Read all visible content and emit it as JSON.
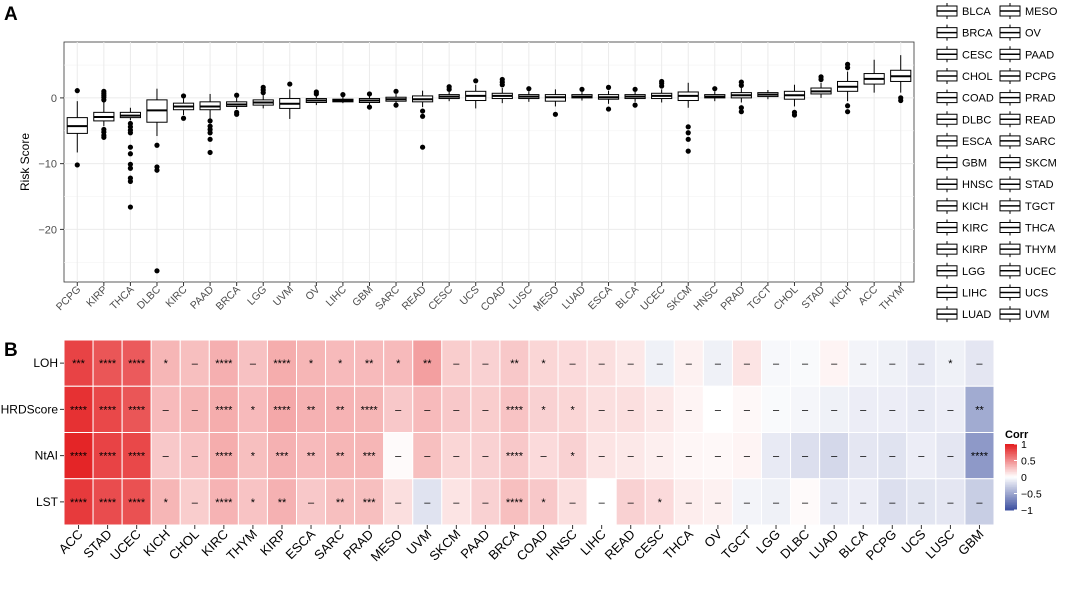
{
  "panel_a": {
    "label": "A"
  },
  "panel_b": {
    "label": "B"
  },
  "colors": {
    "box_fill": "#ffffff",
    "box_stroke": "#000000",
    "grid_major": "#ebebeb",
    "panel_bg": "#ffffff",
    "heat_high": "#e31a1c",
    "heat_mid": "#ffffff",
    "heat_low": "#3c4fa0"
  },
  "chart_data": [
    {
      "type": "boxplot",
      "title": "",
      "xlabel": "",
      "ylabel": "Risk Score",
      "ylim": [
        -28,
        8.5
      ],
      "yticks": [
        0,
        -10,
        -20
      ],
      "ytick_labels": [
        "0",
        "−10",
        "−20"
      ],
      "categories": [
        "PCPG",
        "KIRP",
        "THCA",
        "DLBC",
        "KIRC",
        "PAAD",
        "BRCA",
        "LGG",
        "UVM",
        "OV",
        "LIHC",
        "GBM",
        "SARC",
        "READ",
        "CESC",
        "UCS",
        "COAD",
        "LUSC",
        "MESO",
        "LUAD",
        "ESCA",
        "BLCA",
        "UCEC",
        "SKCM",
        "HNSC",
        "PRAD",
        "TGCT",
        "CHOL",
        "STAD",
        "KICH",
        "ACC",
        "THYM"
      ],
      "boxes": [
        {
          "q1": -5.4,
          "median": -4.3,
          "q3": -3.0,
          "wlo": -8.3,
          "whi": -0.5,
          "out": [
            -10.2,
            1.1
          ]
        },
        {
          "q1": -3.5,
          "median": -2.9,
          "q3": -2.2,
          "wlo": -4.3,
          "whi": -0.6,
          "out": [
            -4.8,
            -5.2,
            -5.7,
            -6.0,
            -0.3,
            0.1,
            0.4,
            0.7,
            1.0
          ]
        },
        {
          "q1": -3.0,
          "median": -2.7,
          "q3": -2.2,
          "wlo": -3.4,
          "whi": -1.5,
          "out": [
            -3.9,
            -4.4,
            -4.9,
            -5.3,
            -7.5,
            -8.5,
            -10.1,
            -10.7,
            -12.2,
            -12.7,
            -16.6
          ]
        },
        {
          "q1": -3.7,
          "median": -1.9,
          "q3": -0.3,
          "wlo": -5.8,
          "whi": 1.4,
          "out": [
            -7.2,
            -10.5,
            -11.0,
            -26.3
          ]
        },
        {
          "q1": -1.8,
          "median": -1.3,
          "q3": -0.8,
          "wlo": -2.6,
          "whi": -0.1,
          "out": [
            -3.1,
            0.3
          ]
        },
        {
          "q1": -1.8,
          "median": -1.3,
          "q3": -0.6,
          "wlo": -3.2,
          "whi": 0.6,
          "out": [
            -3.5,
            -4.3,
            -4.8,
            -5.3,
            -6.3,
            -8.3
          ]
        },
        {
          "q1": -1.3,
          "median": -1.0,
          "q3": -0.6,
          "wlo": -1.7,
          "whi": 0.0,
          "out": [
            -2.2,
            -2.5,
            0.4
          ]
        },
        {
          "q1": -1.1,
          "median": -0.7,
          "q3": -0.3,
          "wlo": -1.6,
          "whi": 0.4,
          "out": [
            0.8,
            1.2,
            1.6
          ]
        },
        {
          "q1": -1.6,
          "median": -0.9,
          "q3": -0.1,
          "wlo": -3.2,
          "whi": 1.3,
          "out": [
            2.1
          ]
        },
        {
          "q1": -0.7,
          "median": -0.4,
          "q3": -0.1,
          "wlo": -1.1,
          "whi": 0.3,
          "out": [
            0.6,
            0.9
          ]
        },
        {
          "q1": -0.6,
          "median": -0.4,
          "q3": -0.2,
          "wlo": -0.8,
          "whi": 0.2,
          "out": [
            0.5
          ]
        },
        {
          "q1": -0.7,
          "median": -0.4,
          "q3": -0.1,
          "wlo": -1.0,
          "whi": 0.3,
          "out": [
            -1.4,
            0.6
          ]
        },
        {
          "q1": -0.5,
          "median": -0.2,
          "q3": 0.1,
          "wlo": -0.8,
          "whi": 0.6,
          "out": [
            -1.1,
            1.0
          ]
        },
        {
          "q1": -0.6,
          "median": -0.2,
          "q3": 0.3,
          "wlo": -1.4,
          "whi": 1.1,
          "out": [
            -2.0,
            -2.8,
            -7.5
          ]
        },
        {
          "q1": -0.1,
          "median": 0.2,
          "q3": 0.5,
          "wlo": -0.5,
          "whi": 0.9,
          "out": [
            1.3,
            1.7
          ]
        },
        {
          "q1": -0.4,
          "median": 0.3,
          "q3": 1.0,
          "wlo": -1.6,
          "whi": 2.0,
          "out": [
            2.6
          ]
        },
        {
          "q1": -0.1,
          "median": 0.3,
          "q3": 0.7,
          "wlo": -0.8,
          "whi": 1.5,
          "out": [
            2.0,
            2.4,
            2.8
          ]
        },
        {
          "q1": -0.1,
          "median": 0.2,
          "q3": 0.5,
          "wlo": -0.6,
          "whi": 1.0,
          "out": [
            1.4
          ]
        },
        {
          "q1": -0.5,
          "median": 0.1,
          "q3": 0.5,
          "wlo": -1.3,
          "whi": 1.3,
          "out": [
            -2.5
          ]
        },
        {
          "q1": 0.0,
          "median": 0.2,
          "q3": 0.5,
          "wlo": -0.4,
          "whi": 0.9,
          "out": [
            1.3
          ]
        },
        {
          "q1": -0.2,
          "median": 0.1,
          "q3": 0.5,
          "wlo": -0.9,
          "whi": 1.1,
          "out": [
            -1.7,
            1.6
          ]
        },
        {
          "q1": -0.1,
          "median": 0.2,
          "q3": 0.5,
          "wlo": -0.6,
          "whi": 0.9,
          "out": [
            -1.1,
            1.3
          ]
        },
        {
          "q1": -0.1,
          "median": 0.3,
          "q3": 0.7,
          "wlo": -0.7,
          "whi": 1.3,
          "out": [
            1.8,
            2.2,
            2.5
          ]
        },
        {
          "q1": -0.4,
          "median": 0.3,
          "q3": 0.9,
          "wlo": -1.5,
          "whi": 2.3,
          "out": [
            -4.4,
            -5.3,
            -6.3,
            -8.1
          ]
        },
        {
          "q1": 0.0,
          "median": 0.2,
          "q3": 0.5,
          "wlo": -0.5,
          "whi": 1.0,
          "out": [
            1.4
          ]
        },
        {
          "q1": 0.0,
          "median": 0.4,
          "q3": 0.8,
          "wlo": -0.7,
          "whi": 1.5,
          "out": [
            -1.5,
            -2.1,
            1.9,
            2.4
          ]
        },
        {
          "q1": 0.2,
          "median": 0.5,
          "q3": 0.8,
          "wlo": -0.2,
          "whi": 1.2,
          "out": []
        },
        {
          "q1": -0.2,
          "median": 0.4,
          "q3": 1.0,
          "wlo": -1.3,
          "whi": 2.0,
          "out": [
            -2.2,
            -2.6
          ]
        },
        {
          "q1": 0.6,
          "median": 1.0,
          "q3": 1.5,
          "wlo": 0.0,
          "whi": 2.3,
          "out": [
            2.8,
            3.2
          ]
        },
        {
          "q1": 1.0,
          "median": 1.7,
          "q3": 2.5,
          "wlo": -0.5,
          "whi": 4.0,
          "out": [
            -1.2,
            -2.1,
            4.6,
            5.1
          ]
        },
        {
          "q1": 2.1,
          "median": 2.9,
          "q3": 3.7,
          "wlo": 0.8,
          "whi": 5.8,
          "out": []
        },
        {
          "q1": 2.5,
          "median": 3.3,
          "q3": 4.2,
          "wlo": 0.8,
          "whi": 6.5,
          "out": [
            0.0,
            -0.4
          ]
        }
      ],
      "legend": {
        "position": "right",
        "col1": [
          "BLCA",
          "BRCA",
          "CESC",
          "CHOL",
          "COAD",
          "DLBC",
          "ESCA",
          "GBM",
          "HNSC",
          "KICH",
          "KIRC",
          "KIRP",
          "LGG",
          "LIHC",
          "LUAD"
        ],
        "col2": [
          "MESO",
          "OV",
          "PAAD",
          "PCPG",
          "PRAD",
          "READ",
          "SARC",
          "SKCM",
          "STAD",
          "TGCT",
          "THCA",
          "THYM",
          "UCEC",
          "UCS",
          "UVM"
        ]
      }
    },
    {
      "type": "heatmap",
      "title": "",
      "rows": [
        "LOH",
        "HRDScore",
        "NtAI",
        "LST"
      ],
      "columns": [
        "ACC",
        "STAD",
        "UCEC",
        "KICH",
        "CHOL",
        "KIRC",
        "THYM",
        "KIRP",
        "ESCA",
        "SARC",
        "PRAD",
        "MESO",
        "UVM",
        "SKCM",
        "PAAD",
        "BRCA",
        "COAD",
        "HNSC",
        "LIHC",
        "READ",
        "CESC",
        "THCA",
        "OV",
        "TGCT",
        "LGG",
        "DLBC",
        "LUAD",
        "BLCA",
        "PCPG",
        "UCS",
        "LUSC",
        "GBM"
      ],
      "values": [
        [
          0.82,
          0.74,
          0.72,
          0.32,
          0.28,
          0.35,
          0.27,
          0.36,
          0.32,
          0.3,
          0.3,
          0.3,
          0.42,
          0.22,
          0.2,
          0.24,
          0.18,
          0.16,
          0.14,
          0.1,
          -0.08,
          0.06,
          -0.08,
          0.12,
          -0.04,
          -0.03,
          0.05,
          -0.06,
          -0.08,
          -0.12,
          -0.08,
          -0.14
        ],
        [
          0.9,
          0.8,
          0.74,
          0.3,
          0.32,
          0.36,
          0.3,
          0.38,
          0.34,
          0.33,
          0.32,
          0.24,
          0.3,
          0.24,
          0.22,
          0.26,
          0.2,
          0.18,
          0.14,
          0.14,
          0.1,
          0.05,
          0.0,
          0.03,
          -0.03,
          -0.05,
          -0.08,
          -0.1,
          -0.1,
          -0.12,
          -0.1,
          -0.48
        ],
        [
          0.95,
          0.82,
          0.8,
          0.24,
          0.26,
          0.36,
          0.28,
          0.34,
          0.3,
          0.32,
          0.32,
          0.02,
          0.28,
          0.18,
          0.2,
          0.24,
          0.16,
          0.2,
          0.12,
          0.1,
          0.07,
          0.04,
          0.03,
          0.05,
          -0.12,
          -0.18,
          -0.22,
          -0.14,
          -0.16,
          -0.1,
          -0.14,
          -0.58
        ],
        [
          0.86,
          0.78,
          0.76,
          0.32,
          0.22,
          0.33,
          0.26,
          0.34,
          0.24,
          0.28,
          0.28,
          0.14,
          -0.16,
          0.12,
          0.2,
          0.28,
          0.24,
          0.14,
          0.0,
          0.2,
          0.16,
          0.08,
          0.06,
          -0.06,
          -0.08,
          0.02,
          -0.12,
          -0.1,
          -0.18,
          -0.15,
          -0.14,
          -0.28
        ]
      ],
      "significance": [
        [
          "***",
          "****",
          "****",
          "*",
          "–",
          "****",
          "–",
          "****",
          "*",
          "*",
          "**",
          "*",
          "**",
          "–",
          "–",
          "**",
          "*",
          "–",
          "–",
          "–",
          "–",
          "–",
          "–",
          "–",
          "–",
          "–",
          "–",
          "–",
          "–",
          "–",
          "*",
          "–"
        ],
        [
          "****",
          "****",
          "****",
          "–",
          "–",
          "****",
          "*",
          "****",
          "**",
          "**",
          "****",
          "–",
          "–",
          "–",
          "–",
          "****",
          "*",
          "*",
          "–",
          "–",
          "–",
          "–",
          "–",
          "–",
          "–",
          "–",
          "–",
          "–",
          "–",
          "–",
          "–",
          "**"
        ],
        [
          "****",
          "****",
          "****",
          "–",
          "–",
          "****",
          "*",
          "***",
          "**",
          "**",
          "***",
          "–",
          "–",
          "–",
          "–",
          "****",
          "–",
          "*",
          "–",
          "–",
          "–",
          "–",
          "–",
          "–",
          "–",
          "–",
          "–",
          "–",
          "–",
          "–",
          "–",
          "****"
        ],
        [
          "****",
          "****",
          "****",
          "*",
          "–",
          "****",
          "*",
          "**",
          "–",
          "**",
          "***",
          "–",
          "–",
          "–",
          "–",
          "****",
          "*",
          "–",
          "–",
          "–",
          "*",
          "–",
          "–",
          "–",
          "–",
          "–",
          "–",
          "–",
          "–",
          "–",
          "–",
          "–"
        ]
      ],
      "colorbar": {
        "title": "Corr",
        "range": [
          -1,
          1
        ],
        "ticks": [
          1,
          0.5,
          0,
          -0.5,
          -1
        ],
        "tick_labels": [
          "1",
          "0.5",
          "0",
          "−0.5",
          "−1"
        ],
        "position": "right"
      }
    }
  ]
}
